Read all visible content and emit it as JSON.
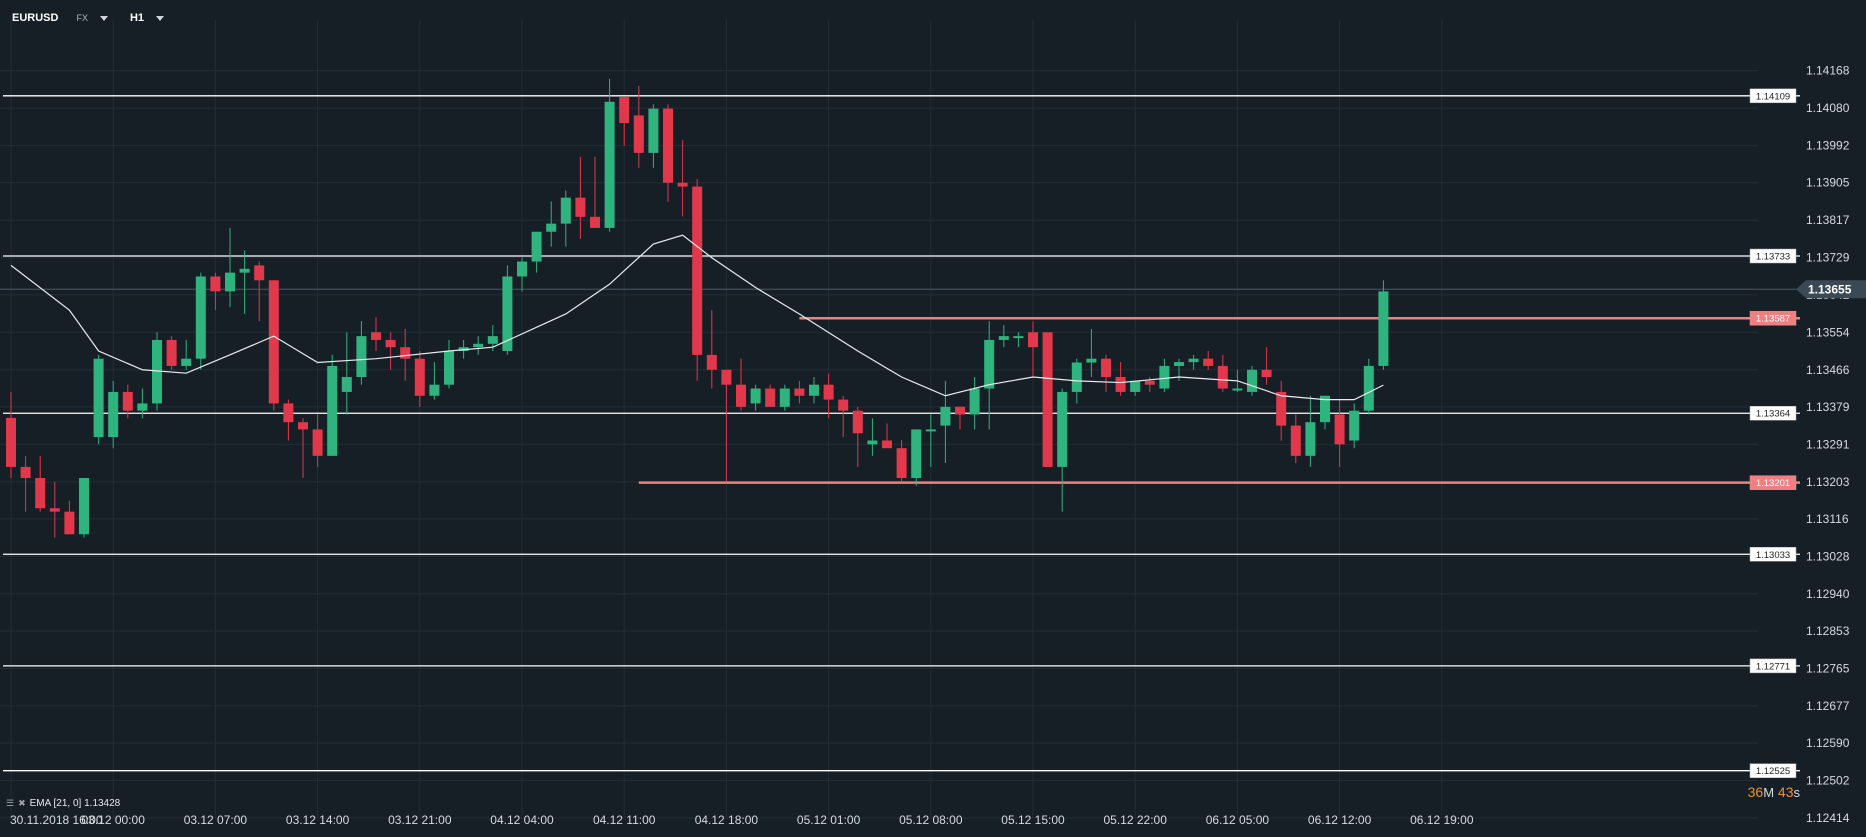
{
  "toolbar": {
    "symbol": "EURUSD",
    "market": "FX",
    "timeframe": "H1"
  },
  "indicator": {
    "label": "EMA [21, 0] 1.13428"
  },
  "timer": {
    "minutes": "36",
    "minutes_unit": "M",
    "seconds": "43",
    "seconds_unit": "s"
  },
  "colors": {
    "background": "#171f26",
    "grid": "#222d36",
    "up": "#2fb37f",
    "down": "#e2384b",
    "level_line": "#ffffff",
    "range_line": "#f08080",
    "ema": "#e8ecef"
  },
  "chart_data": {
    "type": "candlestick",
    "title": "EURUSD H1",
    "y_axis": {
      "ylim": [
        1.12414,
        1.1424
      ],
      "tick_labels": [
        "1.14168",
        "1.14080",
        "1.13992",
        "1.13905",
        "1.13817",
        "1.13729",
        "1.13642",
        "1.13554",
        "1.13466",
        "1.13379",
        "1.13291",
        "1.13203",
        "1.13116",
        "1.13028",
        "1.12940",
        "1.12853",
        "1.12765",
        "1.12677",
        "1.12590",
        "1.12502",
        "1.12414"
      ],
      "current_price": "1.13655"
    },
    "x_axis": {
      "tick_labels": [
        "30.11.2018 16:00",
        "03.12 00:00",
        "03.12 07:00",
        "03.12 14:00",
        "03.12 21:00",
        "04.12 04:00",
        "04.12 11:00",
        "04.12 18:00",
        "05.12 01:00",
        "05.12 08:00",
        "05.12 15:00",
        "05.12 22:00",
        "06.12 05:00",
        "06.12 12:00",
        "06.12 19:00"
      ],
      "tick_candle_index": [
        0,
        7,
        14,
        21,
        28,
        35,
        42,
        49,
        56,
        63,
        70,
        77,
        84,
        91,
        98
      ]
    },
    "grid": true,
    "candles": [
      [
        1.13353,
        1.13414,
        1.13212,
        1.13238
      ],
      [
        1.13238,
        1.13264,
        1.13133,
        1.13212
      ],
      [
        1.13212,
        1.13264,
        1.13133,
        1.13141
      ],
      [
        1.13141,
        1.13203,
        1.13072,
        1.13133
      ],
      [
        1.13133,
        1.13159,
        1.1308,
        1.1308
      ],
      [
        1.1308,
        1.13212,
        1.13072,
        1.13212
      ],
      [
        1.13308,
        1.13501,
        1.13291,
        1.13492
      ],
      [
        1.13308,
        1.1344,
        1.13282,
        1.13414
      ],
      [
        1.13414,
        1.13431,
        1.13352,
        1.1337
      ],
      [
        1.1337,
        1.13422,
        1.13352,
        1.13387
      ],
      [
        1.13387,
        1.13554,
        1.1337,
        1.13536
      ],
      [
        1.13536,
        1.13545,
        1.13466,
        1.13475
      ],
      [
        1.13475,
        1.13536,
        1.13466,
        1.13492
      ],
      [
        1.13492,
        1.13694,
        1.13466,
        1.13685
      ],
      [
        1.13685,
        1.13694,
        1.13606,
        1.1365
      ],
      [
        1.1365,
        1.13799,
        1.13613,
        1.13694
      ],
      [
        1.13694,
        1.13746,
        1.13597,
        1.13703
      ],
      [
        1.13711,
        1.1372,
        1.1358,
        1.13676
      ],
      [
        1.13676,
        1.13676,
        1.1337,
        1.13387
      ],
      [
        1.13387,
        1.13396,
        1.133,
        1.13343
      ],
      [
        1.13343,
        1.13352,
        1.13212,
        1.13326
      ],
      [
        1.13326,
        1.13361,
        1.13238,
        1.13264
      ],
      [
        1.13264,
        1.13501,
        1.13264,
        1.13475
      ],
      [
        1.13414,
        1.13554,
        1.13361,
        1.13449
      ],
      [
        1.13449,
        1.1358,
        1.13431,
        1.13545
      ],
      [
        1.13554,
        1.13589,
        1.1351,
        1.13536
      ],
      [
        1.13536,
        1.13554,
        1.13466,
        1.13519
      ],
      [
        1.13519,
        1.13562,
        1.1344,
        1.13492
      ],
      [
        1.13492,
        1.1351,
        1.13379,
        1.13405
      ],
      [
        1.13405,
        1.13484,
        1.13396,
        1.13431
      ],
      [
        1.13431,
        1.13536,
        1.13422,
        1.1351
      ],
      [
        1.1351,
        1.13536,
        1.13492,
        1.13519
      ],
      [
        1.13519,
        1.13545,
        1.13501,
        1.13527
      ],
      [
        1.13527,
        1.13571,
        1.1351,
        1.13545
      ],
      [
        1.1351,
        1.13711,
        1.13501,
        1.13685
      ],
      [
        1.13685,
        1.13729,
        1.1365,
        1.1372
      ],
      [
        1.1372,
        1.13782,
        1.13694,
        1.1379
      ],
      [
        1.1379,
        1.13861,
        1.13755,
        1.13809
      ],
      [
        1.13809,
        1.13887,
        1.13755,
        1.1387
      ],
      [
        1.1387,
        1.13966,
        1.13773,
        1.13825
      ],
      [
        1.13825,
        1.13966,
        1.13799,
        1.13799
      ],
      [
        1.13799,
        1.14149,
        1.1379,
        1.14095
      ],
      [
        1.14106,
        1.14106,
        1.13992,
        1.14045
      ],
      [
        1.14063,
        1.14132,
        1.1394,
        1.13975
      ],
      [
        1.13975,
        1.14089,
        1.1394,
        1.14079
      ],
      [
        1.14079,
        1.14089,
        1.1386,
        1.13905
      ],
      [
        1.13905,
        1.14005,
        1.13826,
        1.13896
      ],
      [
        1.13896,
        1.13914,
        1.1344,
        1.13501
      ],
      [
        1.13501,
        1.13606,
        1.13422,
        1.13466
      ],
      [
        1.13466,
        1.13466,
        1.13203,
        1.13431
      ],
      [
        1.13431,
        1.13492,
        1.1337,
        1.13379
      ],
      [
        1.13387,
        1.13431,
        1.1337,
        1.13422
      ],
      [
        1.13422,
        1.13431,
        1.13379,
        1.13379
      ],
      [
        1.13379,
        1.13431,
        1.1337,
        1.13422
      ],
      [
        1.13422,
        1.1344,
        1.13387,
        1.13405
      ],
      [
        1.13405,
        1.13449,
        1.13387,
        1.13431
      ],
      [
        1.13431,
        1.13457,
        1.13352,
        1.13396
      ],
      [
        1.13396,
        1.13405,
        1.13308,
        1.1337
      ],
      [
        1.1337,
        1.13379,
        1.13238,
        1.13317
      ],
      [
        1.13291,
        1.13352,
        1.13264,
        1.133
      ],
      [
        1.133,
        1.1334,
        1.13291,
        1.13282
      ],
      [
        1.13282,
        1.13301,
        1.13203,
        1.13212
      ],
      [
        1.13212,
        1.13326,
        1.13194,
        1.13326
      ],
      [
        1.13326,
        1.13361,
        1.13238,
        1.13326
      ],
      [
        1.13335,
        1.1344,
        1.13247,
        1.13379
      ],
      [
        1.13379,
        1.13379,
        1.13326,
        1.13361
      ],
      [
        1.13361,
        1.13449,
        1.13326,
        1.13422
      ],
      [
        1.13422,
        1.1358,
        1.13326,
        1.13536
      ],
      [
        1.13536,
        1.13571,
        1.13519,
        1.13545
      ],
      [
        1.13545,
        1.13554,
        1.13519,
        1.13545
      ],
      [
        1.13554,
        1.1358,
        1.13449,
        1.13519
      ],
      [
        1.13554,
        1.13554,
        1.13238,
        1.13238
      ],
      [
        1.13238,
        1.13422,
        1.13133,
        1.13414
      ],
      [
        1.13414,
        1.13492,
        1.13387,
        1.13483
      ],
      [
        1.13483,
        1.13562,
        1.13449,
        1.13492
      ],
      [
        1.13492,
        1.13501,
        1.13414,
        1.13449
      ],
      [
        1.13449,
        1.13484,
        1.13405,
        1.13414
      ],
      [
        1.13414,
        1.1344,
        1.13405,
        1.1344
      ],
      [
        1.1344,
        1.13449,
        1.13414,
        1.13431
      ],
      [
        1.13422,
        1.13492,
        1.13414,
        1.13475
      ],
      [
        1.13475,
        1.13492,
        1.1344,
        1.13484
      ],
      [
        1.13484,
        1.13501,
        1.13466,
        1.13492
      ],
      [
        1.13492,
        1.1351,
        1.13466,
        1.13475
      ],
      [
        1.13475,
        1.13501,
        1.13414,
        1.13422
      ],
      [
        1.13422,
        1.13466,
        1.13414,
        1.13422
      ],
      [
        1.13414,
        1.13475,
        1.13405,
        1.13466
      ],
      [
        1.13466,
        1.13519,
        1.13431,
        1.13449
      ],
      [
        1.13414,
        1.1344,
        1.133,
        1.13335
      ],
      [
        1.13335,
        1.13361,
        1.13247,
        1.13264
      ],
      [
        1.13264,
        1.13405,
        1.13238,
        1.13343
      ],
      [
        1.13343,
        1.13405,
        1.13326,
        1.13405
      ],
      [
        1.13361,
        1.13396,
        1.13238,
        1.13291
      ],
      [
        1.133,
        1.13387,
        1.13282,
        1.1337
      ],
      [
        1.1337,
        1.13492,
        1.13361,
        1.13475
      ],
      [
        1.13475,
        1.13676,
        1.13466,
        1.1365
      ]
    ],
    "ema": {
      "name": "EMA [21, 0]",
      "last_value": 1.13428,
      "points": [
        [
          0,
          1.13711
        ],
        [
          4,
          1.13606
        ],
        [
          6,
          1.1351
        ],
        [
          9,
          1.13466
        ],
        [
          12,
          1.13458
        ],
        [
          15,
          1.13501
        ],
        [
          18,
          1.13545
        ],
        [
          21,
          1.13483
        ],
        [
          25,
          1.13492
        ],
        [
          30,
          1.1351
        ],
        [
          33,
          1.13519
        ],
        [
          38,
          1.13597
        ],
        [
          41,
          1.13667
        ],
        [
          44,
          1.13761
        ],
        [
          46,
          1.13782
        ],
        [
          48,
          1.13729
        ],
        [
          51,
          1.13659
        ],
        [
          54,
          1.13597
        ],
        [
          58,
          1.1351
        ],
        [
          61,
          1.13449
        ],
        [
          64,
          1.13405
        ],
        [
          67,
          1.13431
        ],
        [
          70,
          1.13449
        ],
        [
          73,
          1.1344
        ],
        [
          76,
          1.13436
        ],
        [
          80,
          1.13449
        ],
        [
          84,
          1.1344
        ],
        [
          87,
          1.13405
        ],
        [
          90,
          1.13396
        ],
        [
          92,
          1.13396
        ],
        [
          94,
          1.1343
        ]
      ]
    },
    "horizontal_levels": [
      {
        "label": "1.14109",
        "value": 1.14109,
        "style": "white"
      },
      {
        "label": "1.13733",
        "value": 1.13733,
        "style": "white"
      },
      {
        "label": "1.13364",
        "value": 1.13364,
        "style": "white"
      },
      {
        "label": "1.13033",
        "value": 1.13033,
        "style": "white"
      },
      {
        "label": "1.12771",
        "value": 1.12771,
        "style": "white"
      },
      {
        "label": "1.12525",
        "value": 1.12525,
        "style": "white"
      },
      {
        "label": "1.13587",
        "value": 1.13587,
        "style": "red",
        "start_index": 54
      },
      {
        "label": "1.13201",
        "value": 1.13201,
        "style": "red",
        "start_index": 43
      }
    ]
  }
}
